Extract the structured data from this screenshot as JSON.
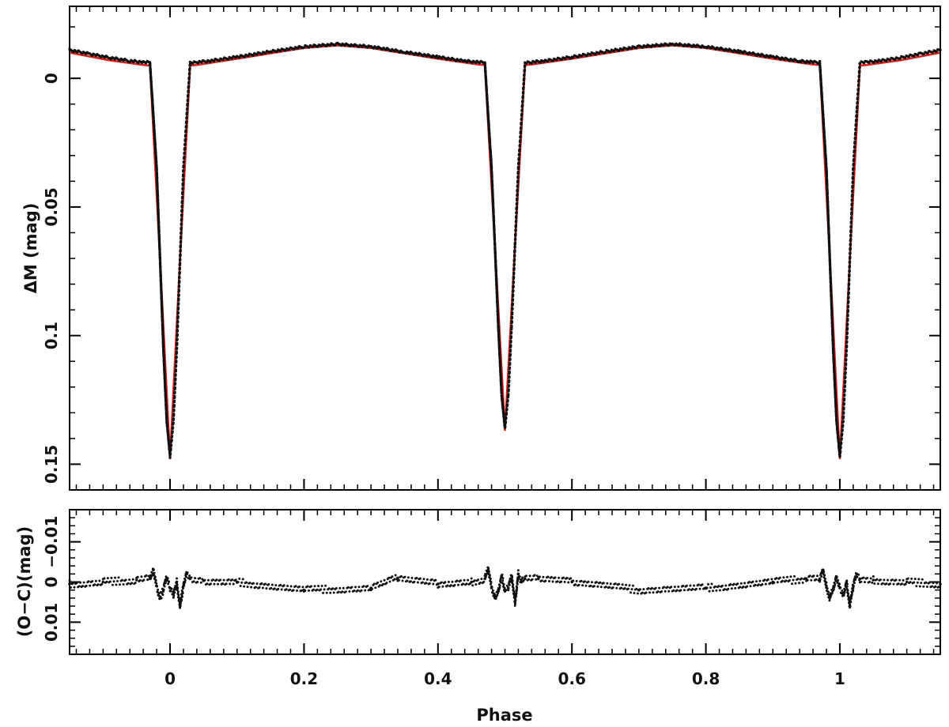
{
  "chart_data": [
    {
      "type": "scatter",
      "panel": "light-curve",
      "title": "",
      "xlabel": "",
      "ylabel": "ΔM (mag)",
      "xlim": [
        -0.15,
        1.15
      ],
      "ylim": [
        -0.028,
        0.16
      ],
      "y_inverted": true,
      "grid": false,
      "xticks": [
        0,
        0.2,
        0.4,
        0.6,
        0.8,
        1
      ],
      "yticks": [
        0,
        0.05,
        0.1,
        0.15
      ],
      "ytick_labels": [
        "0",
        "0.05",
        "0.1",
        "0.15"
      ],
      "colors": {
        "observed": "#111111",
        "model": "#e0201b"
      },
      "series": [
        {
          "role": "observed",
          "x": [
            -0.15,
            -0.12,
            -0.09,
            -0.06,
            -0.04,
            -0.03,
            -0.02,
            -0.015,
            -0.01,
            -0.005,
            0.0,
            0.005,
            0.01,
            0.015,
            0.02,
            0.03,
            0.04,
            0.06,
            0.1,
            0.15,
            0.2,
            0.25,
            0.3,
            0.35,
            0.4,
            0.44,
            0.46,
            0.47,
            0.48,
            0.485,
            0.49,
            0.495,
            0.5,
            0.505,
            0.51,
            0.515,
            0.52,
            0.53,
            0.54,
            0.56,
            0.6,
            0.65,
            0.7,
            0.75,
            0.8,
            0.85,
            0.9,
            0.94,
            0.96,
            0.97,
            0.98,
            0.985,
            0.99,
            0.995,
            1.0,
            1.005,
            1.01,
            1.015,
            1.02,
            1.03,
            1.04,
            1.06,
            1.09,
            1.12,
            1.15
          ],
          "y": [
            -0.011,
            -0.0095,
            -0.008,
            -0.0068,
            -0.0063,
            -0.0062,
            0.035,
            0.07,
            0.105,
            0.133,
            0.147,
            0.133,
            0.105,
            0.07,
            0.035,
            -0.0062,
            -0.0063,
            -0.0068,
            -0.0083,
            -0.0104,
            -0.0123,
            -0.0133,
            -0.0123,
            -0.0102,
            -0.0083,
            -0.0067,
            -0.0063,
            -0.0062,
            0.035,
            0.065,
            0.096,
            0.123,
            0.136,
            0.123,
            0.096,
            0.065,
            0.035,
            -0.0062,
            -0.0063,
            -0.0068,
            -0.0083,
            -0.0104,
            -0.0123,
            -0.0133,
            -0.0123,
            -0.0104,
            -0.0083,
            -0.0067,
            -0.0063,
            -0.0062,
            0.035,
            0.07,
            0.105,
            0.133,
            0.147,
            0.133,
            0.105,
            0.07,
            0.035,
            -0.0062,
            -0.0063,
            -0.0068,
            -0.008,
            -0.0095,
            -0.011
          ]
        },
        {
          "role": "model",
          "x": [
            -0.15,
            -0.09,
            -0.04,
            -0.03,
            -0.015,
            0.0,
            0.015,
            0.03,
            0.04,
            0.1,
            0.2,
            0.25,
            0.3,
            0.4,
            0.46,
            0.47,
            0.485,
            0.5,
            0.515,
            0.53,
            0.54,
            0.6,
            0.7,
            0.75,
            0.8,
            0.9,
            0.96,
            0.97,
            0.985,
            1.0,
            1.015,
            1.03,
            1.04,
            1.09,
            1.15
          ],
          "y": [
            -0.01,
            -0.007,
            -0.0052,
            -0.005,
            0.07,
            0.148,
            0.07,
            -0.005,
            -0.0052,
            -0.0076,
            -0.0118,
            -0.0128,
            -0.0118,
            -0.0076,
            -0.0054,
            -0.0052,
            0.065,
            0.137,
            0.065,
            -0.0052,
            -0.0054,
            -0.0076,
            -0.0118,
            -0.0128,
            -0.0118,
            -0.0076,
            -0.0054,
            -0.0052,
            0.07,
            0.148,
            0.07,
            -0.005,
            -0.0052,
            -0.007,
            -0.01
          ]
        }
      ]
    },
    {
      "type": "scatter",
      "panel": "residuals",
      "title": "",
      "xlabel": "Phase",
      "ylabel": "(O−C)(mag)",
      "xlim": [
        -0.15,
        1.15
      ],
      "ylim": [
        -0.018,
        0.018
      ],
      "y_inverted": true,
      "grid": false,
      "xticks": [
        0,
        0.2,
        0.4,
        0.6,
        0.8,
        1
      ],
      "xtick_labels": [
        "0",
        "0.2",
        "0.4",
        "0.6",
        "0.8",
        "1"
      ],
      "yticks": [
        -0.01,
        0,
        0.01
      ],
      "ytick_labels": [
        "−0.01",
        "0",
        "0.01"
      ],
      "colors": {
        "observed": "#111111"
      },
      "series": [
        {
          "role": "residuals",
          "x": [
            -0.15,
            -0.1,
            -0.05,
            -0.03,
            -0.025,
            -0.02,
            -0.015,
            -0.01,
            -0.005,
            0.0,
            0.005,
            0.01,
            0.015,
            0.02,
            0.025,
            0.03,
            0.05,
            0.1,
            0.2,
            0.3,
            0.34,
            0.4,
            0.45,
            0.47,
            0.475,
            0.48,
            0.485,
            0.49,
            0.495,
            0.5,
            0.505,
            0.51,
            0.515,
            0.52,
            0.525,
            0.53,
            0.55,
            0.6,
            0.7,
            0.8,
            0.9,
            0.95,
            0.97,
            0.975,
            0.98,
            0.985,
            0.99,
            0.995,
            1.0,
            1.005,
            1.01,
            1.015,
            1.02,
            1.025,
            1.03,
            1.05,
            1.1,
            1.15
          ],
          "y": [
            0.0005,
            0.0,
            -0.0005,
            -0.0008,
            -0.003,
            0.001,
            0.004,
            0.002,
            -0.001,
            0.0015,
            0.003,
            0.0,
            0.006,
            0.001,
            -0.002,
            -0.0008,
            -0.0003,
            0.0,
            0.002,
            0.0015,
            -0.001,
            0.0005,
            0.0,
            -0.0008,
            -0.003,
            0.0015,
            0.004,
            0.002,
            -0.0015,
            0.002,
            0.0015,
            -0.0015,
            0.005,
            -0.002,
            0.0,
            -0.0008,
            -0.0008,
            0.0,
            0.002,
            0.0015,
            0.0,
            -0.0008,
            -0.0008,
            -0.003,
            0.001,
            0.004,
            0.002,
            -0.001,
            0.0015,
            0.003,
            0.0,
            0.006,
            0.001,
            -0.002,
            -0.0008,
            -0.0005,
            0.0,
            0.0005
          ]
        }
      ]
    }
  ]
}
